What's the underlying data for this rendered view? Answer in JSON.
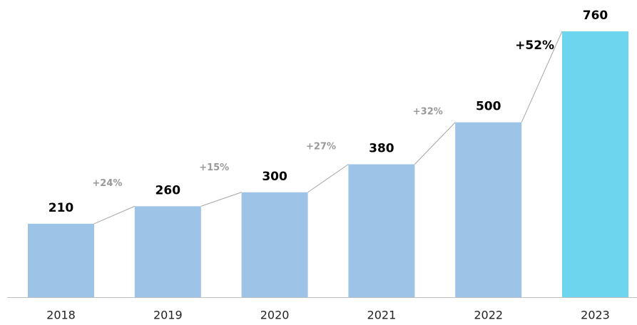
{
  "chart_data": {
    "type": "bar",
    "categories": [
      "2018",
      "2019",
      "2020",
      "2021",
      "2022",
      "2023"
    ],
    "values": [
      210,
      260,
      300,
      380,
      500,
      760
    ],
    "colors": [
      "#9dc3e6",
      "#9dc3e6",
      "#9dc3e6",
      "#9dc3e6",
      "#9dc3e6",
      "#6dd5ed"
    ],
    "ylim": [
      0,
      760
    ],
    "growth": {
      "values": [
        24,
        15,
        27,
        32,
        52
      ],
      "value_labels": [
        "+24%",
        "+15%",
        "+27%",
        "+32%",
        "+52%"
      ]
    }
  }
}
